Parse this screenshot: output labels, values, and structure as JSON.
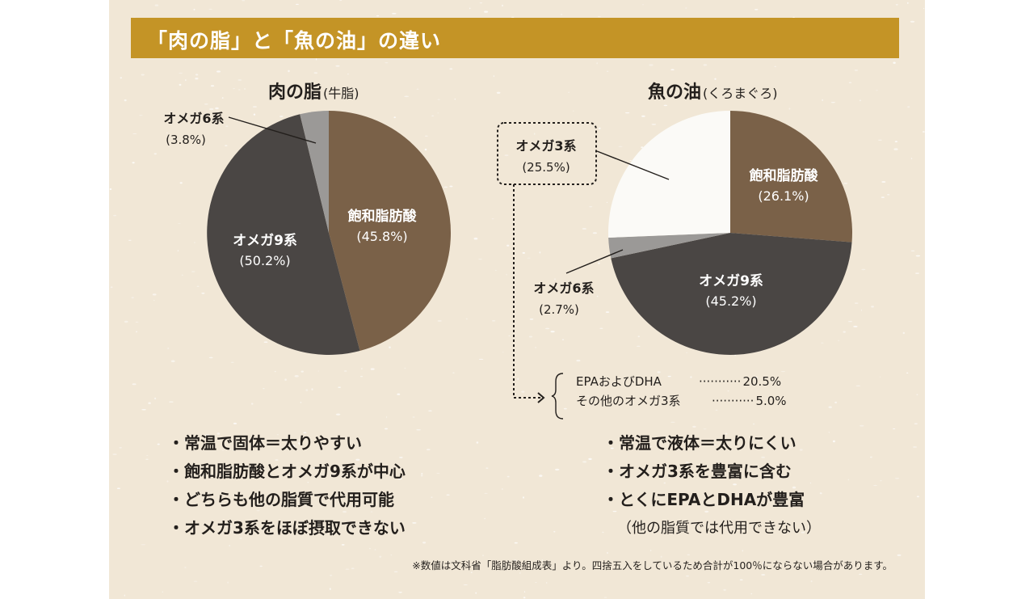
{
  "header": {
    "title": "「肉の脂」と「魚の油」の違い"
  },
  "colors": {
    "saturated": "#7a6148",
    "omega9": "#4a4644",
    "omega6": "#9b9997",
    "omega3": "#fbfaf7",
    "title_bar": "#c49426",
    "background": "#f1e7d6"
  },
  "chart_data": [
    {
      "type": "pie",
      "title": "肉の脂",
      "subtitle": "(牛脂)",
      "slices": [
        {
          "label": "飽和脂肪酸",
          "value": 45.8,
          "value_label": "(45.8%)"
        },
        {
          "label": "オメガ9系",
          "value": 50.2,
          "value_label": "(50.2%)"
        },
        {
          "label": "オメガ6系",
          "value": 3.8,
          "value_label": "(3.8%)"
        }
      ]
    },
    {
      "type": "pie",
      "title": "魚の油",
      "subtitle": "(くろまぐろ)",
      "slices": [
        {
          "label": "飽和脂肪酸",
          "value": 26.1,
          "value_label": "(26.1%)"
        },
        {
          "label": "オメガ9系",
          "value": 45.2,
          "value_label": "(45.2%)"
        },
        {
          "label": "オメガ6系",
          "value": 2.7,
          "value_label": "(2.7%)"
        },
        {
          "label": "オメガ3系",
          "value": 25.5,
          "value_label": "(25.5%)"
        }
      ],
      "breakdown": [
        {
          "label": "EPAおよびDHA",
          "dots": "···········",
          "value": "20.5%"
        },
        {
          "label": "その他のオメガ3系",
          "dots": "···········",
          "value": "5.0%"
        }
      ]
    }
  ],
  "meat_points": [
    "・常温で固体＝太りやすい",
    "・飽和脂肪酸とオメガ9系が中心",
    "・どちらも他の脂質で代用可能",
    "・オメガ3系をほぼ摂取できない"
  ],
  "fish_points": [
    "・常温で液体＝太りにくい",
    "・オメガ3系を豊富に含む",
    "・とくにEPAとDHAが豊富"
  ],
  "fish_note": "（他の脂質では代用できない）",
  "footnote": "※数値は文科省「脂肪酸組成表」より。四捨五入をしているため合計が100％にならない場合があります。"
}
